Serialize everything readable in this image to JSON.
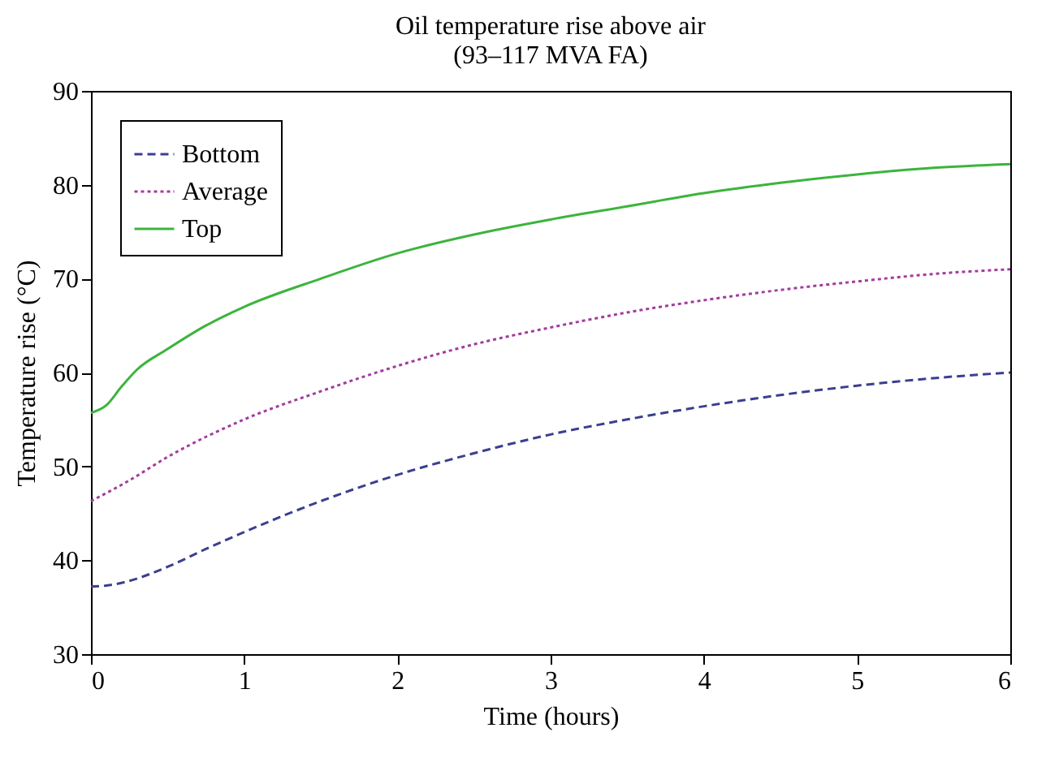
{
  "chart_data": {
    "type": "line",
    "title": "Oil temperature rise above air",
    "subtitle": "(93–117 MVA FA)",
    "xlabel": "Time (hours)",
    "ylabel": "Temperature rise (°C)",
    "xlim": [
      0,
      6
    ],
    "xticks": [
      0,
      1,
      2,
      3,
      4,
      5,
      6
    ],
    "ylim": [
      30,
      90
    ],
    "yticks": [
      30,
      40,
      50,
      60,
      70,
      80,
      90
    ],
    "grid": false,
    "legend": "top left",
    "marker": "none",
    "series": [
      {
        "name": "Bottom",
        "color": "#3b3f8f",
        "line_style": "dashed",
        "x": [
          0,
          0.1,
          0.25,
          0.5,
          0.75,
          1,
          1.5,
          2,
          2.5,
          3,
          3.5,
          4,
          4.5,
          5,
          5.5,
          6
        ],
        "values": [
          37.2,
          37.3,
          37.8,
          39.3,
          41.2,
          43,
          46.3,
          49.1,
          51.4,
          53.4,
          55,
          56.4,
          57.6,
          58.6,
          59.4,
          60
        ]
      },
      {
        "name": "Average",
        "color": "#a23c9c",
        "line_style": "dotted",
        "x": [
          0,
          0.25,
          0.5,
          1,
          1.5,
          2,
          2.5,
          3,
          3.5,
          4,
          4.5,
          5,
          5.5,
          6
        ],
        "values": [
          46.3,
          48.5,
          51,
          55,
          58,
          60.7,
          63,
          64.8,
          66.4,
          67.7,
          68.8,
          69.7,
          70.5,
          71
        ]
      },
      {
        "name": "Top",
        "color": "#3cb43c",
        "line_style": "solid",
        "x": [
          0,
          0.1,
          0.2,
          0.3,
          0.5,
          0.75,
          1,
          1.5,
          2,
          2.5,
          3,
          3.5,
          4,
          4.5,
          5,
          5.5,
          6
        ],
        "values": [
          55.7,
          56.5,
          58.5,
          60.3,
          62.5,
          65,
          67,
          70,
          72.7,
          74.7,
          76.3,
          77.7,
          79.1,
          80.2,
          81.1,
          81.8,
          82.2
        ]
      }
    ]
  }
}
